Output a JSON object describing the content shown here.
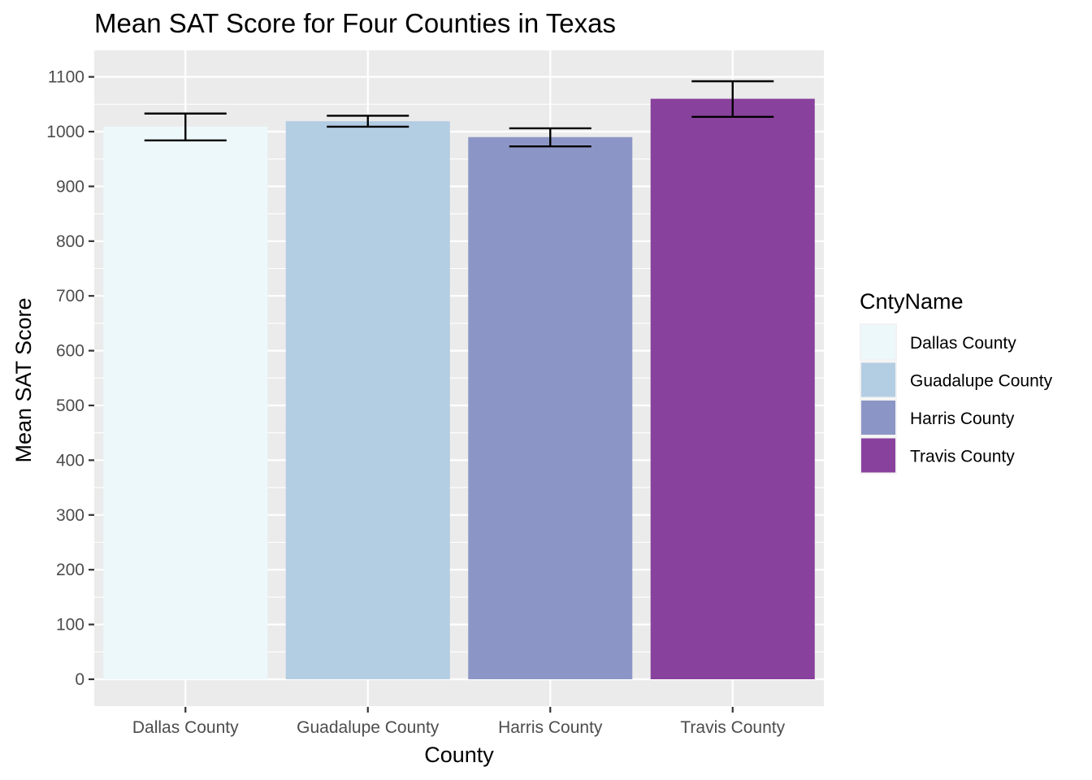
{
  "chart_data": {
    "type": "bar",
    "title": "Mean SAT Score for Four Counties in Texas",
    "xlabel": "County",
    "ylabel": "Mean SAT Score",
    "categories": [
      "Dallas County",
      "Guadalupe County",
      "Harris County",
      "Travis County"
    ],
    "values": [
      1009,
      1019,
      990,
      1060
    ],
    "error_low": [
      984,
      1009,
      973,
      1027
    ],
    "error_high": [
      1033,
      1029,
      1006,
      1092
    ],
    "colors": [
      "#edf8fb",
      "#b3cde3",
      "#8c96c6",
      "#88419d"
    ],
    "ylim": [
      -50,
      1145
    ],
    "yticks": [
      0,
      100,
      200,
      300,
      400,
      500,
      600,
      700,
      800,
      900,
      1000,
      1100
    ],
    "grid": true,
    "panel_background": "#ebebeb",
    "legend": {
      "title": "CntyName",
      "position": "right",
      "entries": [
        "Dallas County",
        "Guadalupe County",
        "Harris County",
        "Travis County"
      ]
    }
  }
}
